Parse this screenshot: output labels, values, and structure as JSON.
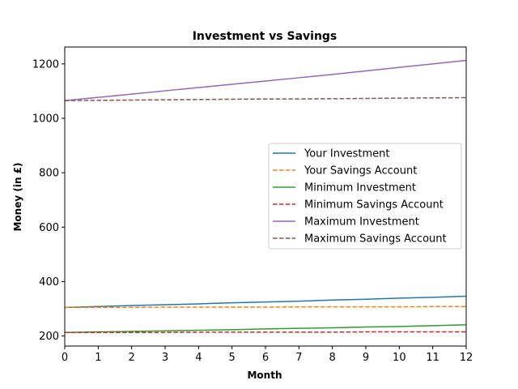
{
  "chart_data": {
    "type": "line",
    "title": "Investment vs Savings",
    "xlabel": "Month",
    "ylabel": "Money (in £)",
    "xlim": [
      0,
      12
    ],
    "ylim": [
      163,
      1262
    ],
    "xticks": [
      0,
      1,
      2,
      3,
      4,
      5,
      6,
      7,
      8,
      9,
      10,
      11,
      12
    ],
    "yticks": [
      200,
      400,
      600,
      800,
      1000,
      1200
    ],
    "grid": false,
    "legend_position": "center-right",
    "x": [
      0,
      1,
      2,
      3,
      4,
      5,
      6,
      7,
      8,
      9,
      10,
      11,
      12
    ],
    "series": [
      {
        "name": "Your Investment",
        "color": "#1f77b4",
        "style": "solid",
        "values": [
          305,
          308,
          312,
          315,
          318,
          322,
          325,
          328,
          332,
          335,
          339,
          342,
          346
        ]
      },
      {
        "name": "Your Savings Account",
        "color": "#ff7f0e",
        "style": "dashed",
        "values": [
          305,
          305,
          305,
          306,
          306,
          306,
          306,
          307,
          307,
          307,
          307,
          308,
          308
        ]
      },
      {
        "name": "Minimum Investment",
        "color": "#2ca02c",
        "style": "solid",
        "values": [
          213,
          215,
          217,
          219,
          221,
          223,
          226,
          228,
          230,
          233,
          235,
          238,
          241
        ]
      },
      {
        "name": "Minimum Savings Account",
        "color": "#d62728",
        "style": "dashed",
        "values": [
          213,
          213,
          213,
          213,
          214,
          214,
          214,
          214,
          214,
          215,
          215,
          215,
          215
        ]
      },
      {
        "name": "Maximum Investment",
        "color": "#9467bd",
        "style": "solid",
        "values": [
          1065,
          1077,
          1089,
          1101,
          1113,
          1125,
          1137,
          1149,
          1161,
          1174,
          1187,
          1200,
          1213
        ]
      },
      {
        "name": "Maximum Savings Account",
        "color": "#8c564b",
        "style": "dashed",
        "values": [
          1065,
          1066,
          1067,
          1068,
          1069,
          1070,
          1071,
          1071,
          1072,
          1073,
          1074,
          1075,
          1076
        ]
      }
    ]
  }
}
